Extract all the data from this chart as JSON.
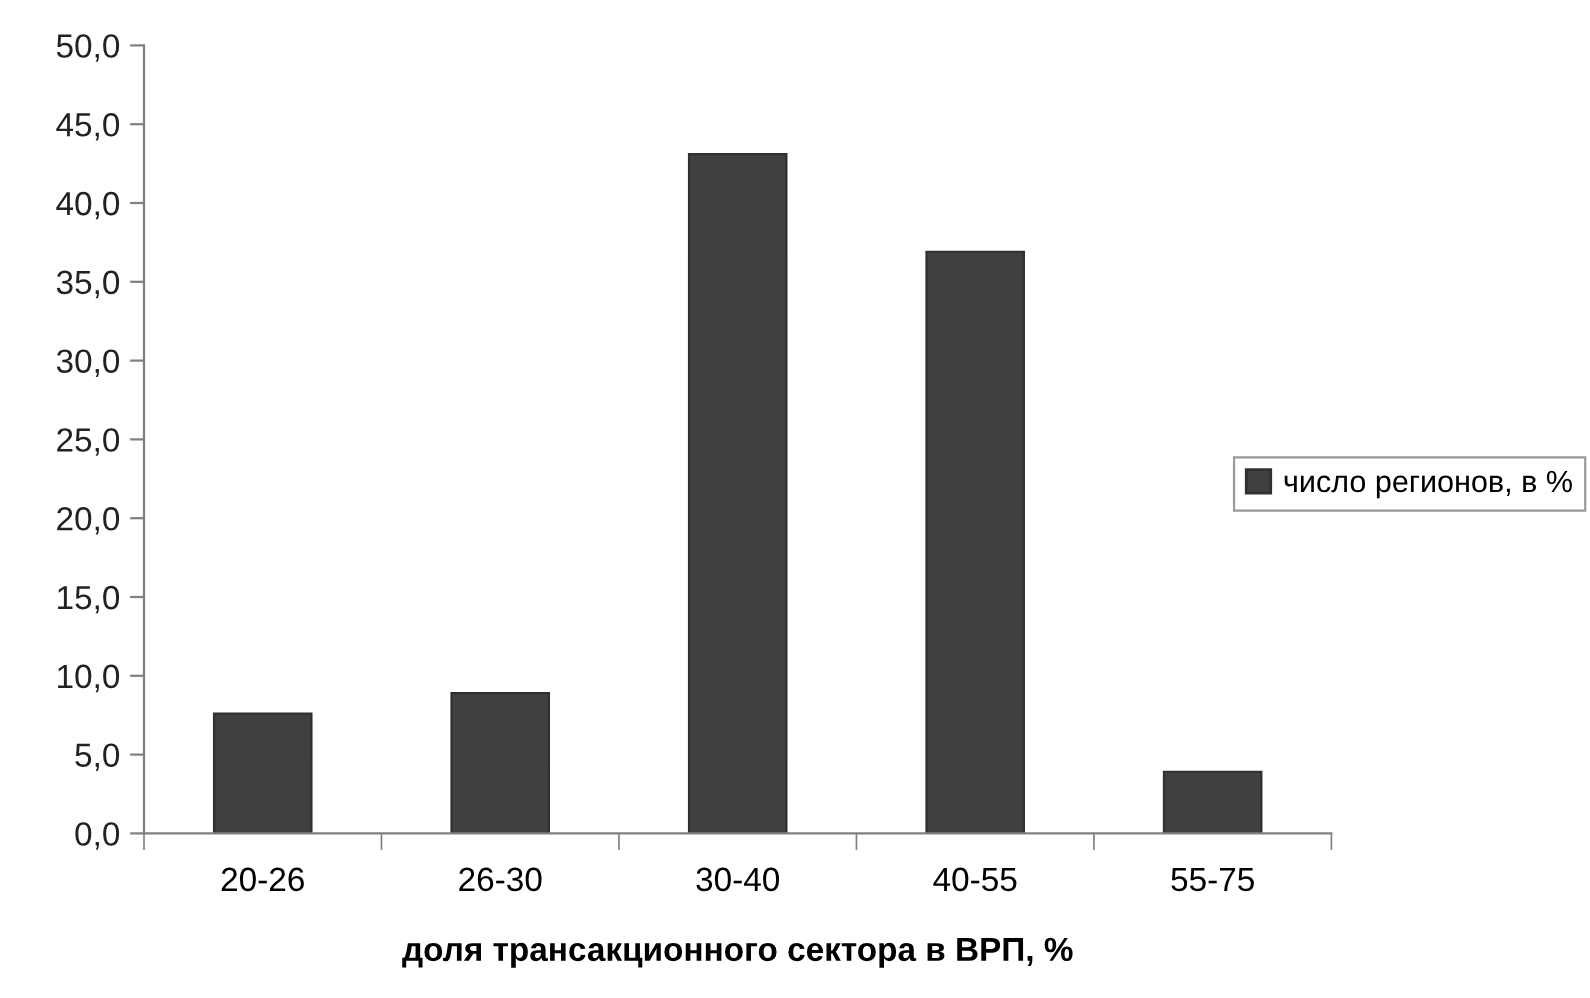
{
  "chart_data": {
    "type": "bar",
    "xlabel": "доля трансакционного сектора в ВРП, %",
    "categories": [
      "20-26",
      "26-30",
      "30-40",
      "40-55",
      "55-75"
    ],
    "series": [
      {
        "name": "число регионов, в %",
        "color": "#404040",
        "values": [
          7.6,
          8.9,
          43.1,
          36.9,
          3.9
        ]
      }
    ],
    "ylim": [
      0,
      50
    ],
    "yticks": [
      {
        "value": 0,
        "label": "0,0"
      },
      {
        "value": 5,
        "label": "5,0"
      },
      {
        "value": 10,
        "label": "10,0"
      },
      {
        "value": 15,
        "label": "15,0"
      },
      {
        "value": 20,
        "label": "20,0"
      },
      {
        "value": 25,
        "label": "25,0"
      },
      {
        "value": 30,
        "label": "30,0"
      },
      {
        "value": 35,
        "label": "35,0"
      },
      {
        "value": 40,
        "label": "40,0"
      },
      {
        "value": 45,
        "label": "45,0"
      },
      {
        "value": 50,
        "label": "50,0"
      }
    ],
    "grid": false,
    "legend": "right"
  }
}
